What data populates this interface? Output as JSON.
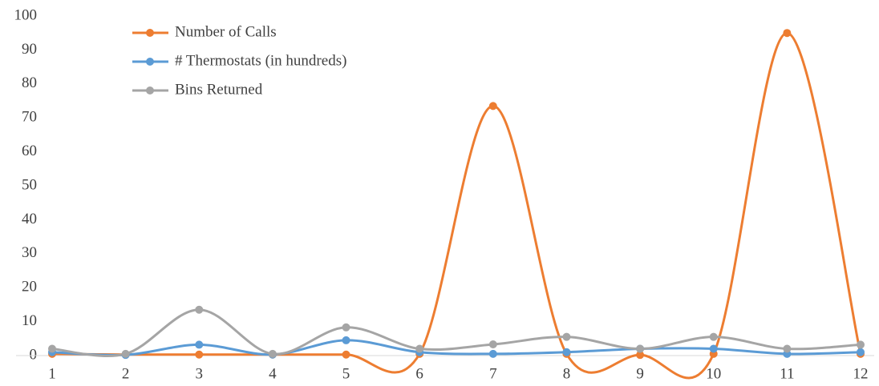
{
  "chart_data": {
    "type": "line",
    "categories": [
      "1",
      "2",
      "3",
      "4",
      "5",
      "6",
      "7",
      "8",
      "9",
      "10",
      "11",
      "12"
    ],
    "series": [
      {
        "name": "Number of Calls",
        "color": "#ed7d31",
        "values": [
          0.5,
          0.3,
          0.3,
          0.3,
          0.3,
          0.5,
          73.5,
          0.5,
          0.2,
          0.5,
          95,
          0.5
        ]
      },
      {
        "name": "# Thermostats (in hundreds)",
        "color": "#5b9bd5",
        "values": [
          1,
          0.2,
          3.2,
          0.3,
          4.5,
          1,
          0.5,
          1,
          2,
          2,
          0.5,
          1
        ]
      },
      {
        "name": "Bins Returned",
        "color": "#a5a5a5",
        "values": [
          2,
          0.5,
          13.5,
          0.5,
          8.3,
          2,
          3.3,
          5.5,
          2,
          5.5,
          2,
          3.2
        ]
      }
    ],
    "ylim": [
      0,
      100
    ],
    "yticks": [
      0,
      10,
      20,
      30,
      40,
      50,
      60,
      70,
      80,
      90,
      100
    ],
    "smooth": true,
    "grid": false,
    "legend": "top-left"
  }
}
